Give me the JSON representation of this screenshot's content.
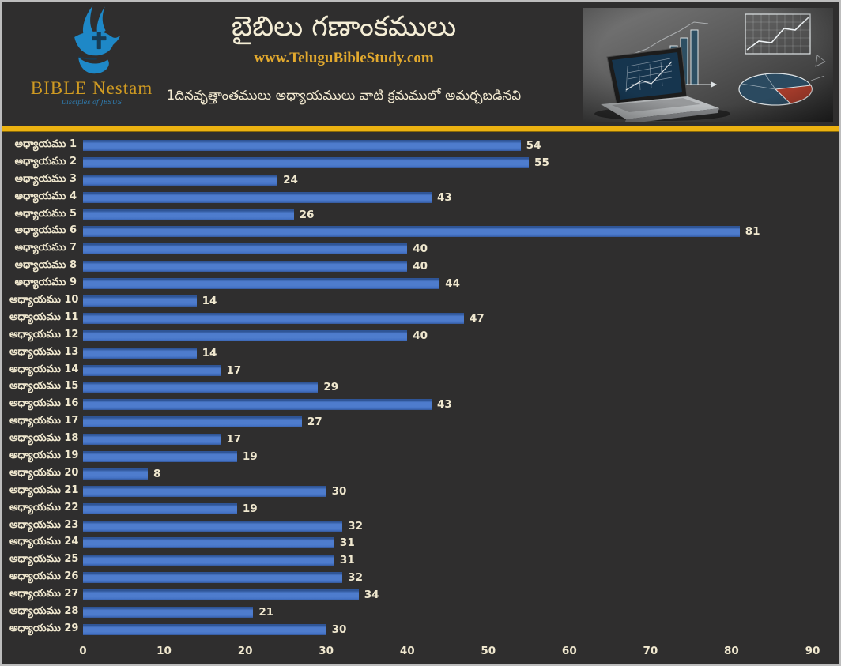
{
  "header": {
    "logo": {
      "brand": "BIBLE Nestam",
      "tagline": "Disciples of JESUS",
      "icon": "dove-cross-hand",
      "brand_color": "#cf9a22",
      "dove_color": "#1e88c7"
    },
    "title": "బైబిలు గణాంకములు",
    "website": "www.TeluguBibleStudy.com",
    "subtitle": "1దినవృత్తాంతములు అధ్యాయములు వాటి క్రమములో అమర్చబడినవి",
    "photo": "laptop-with-chalkboard-charts"
  },
  "theme": {
    "background": "#2f2e2e",
    "frame_border": "#bdbdbd",
    "divider_gold": "#ecb211",
    "title_color": "#f5eed6",
    "website_color": "#e2a92e",
    "text_cream": "#f0e8cf"
  },
  "chart_data": {
    "type": "bar",
    "orientation": "horizontal",
    "title": "బైబిలు గణాంకములు",
    "subtitle": "1దినవృత్తాంతములు అధ్యాయములు వాటి క్రమములో అమర్చబడినవి",
    "categories": [
      "అధ్యాయము 1",
      "అధ్యాయము 2",
      "అధ్యాయము 3",
      "అధ్యాయము 4",
      "అధ్యాయము 5",
      "అధ్యాయము 6",
      "అధ్యాయము 7",
      "అధ్యాయము 8",
      "అధ్యాయము 9",
      "అధ్యాయము 10",
      "అధ్యాయము 11",
      "అధ్యాయము 12",
      "అధ్యాయము 13",
      "అధ్యాయము 14",
      "అధ్యాయము 15",
      "అధ్యాయము 16",
      "అధ్యాయము 17",
      "అధ్యాయము 18",
      "అధ్యాయము 19",
      "అధ్యాయము 20",
      "అధ్యాయము 21",
      "అధ్యాయము 22",
      "అధ్యాయము 23",
      "అధ్యాయము 24",
      "అధ్యాయము 25",
      "అధ్యాయము 26",
      "అధ్యాయము 27",
      "అధ్యాయము 28",
      "అధ్యాయము 29"
    ],
    "values": [
      54,
      55,
      24,
      43,
      26,
      81,
      40,
      40,
      44,
      14,
      47,
      40,
      14,
      17,
      29,
      43,
      27,
      17,
      19,
      8,
      30,
      19,
      32,
      31,
      31,
      32,
      34,
      21,
      30
    ],
    "xlabel": "",
    "ylabel": "",
    "xlim": [
      0,
      90
    ],
    "x_ticks": [
      0,
      10,
      20,
      30,
      40,
      50,
      60,
      70,
      80,
      90
    ],
    "grid": "off",
    "legend": "none",
    "bar_color": "#4573c6",
    "bar_edge_color": "#2f5597",
    "value_labels": "shown-right-of-bar",
    "label_color": "#f0e8cf"
  }
}
